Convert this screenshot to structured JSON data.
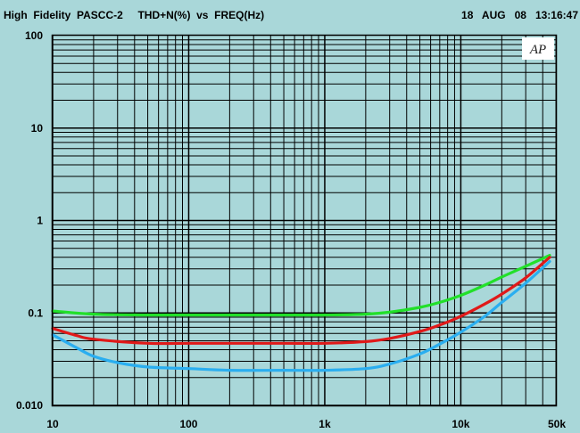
{
  "header": {
    "title": "High  Fidelity  PASCC-2     THD+N(%)  vs  FREQ(Hz)",
    "timestamp": "18   AUG   08   13:16:47"
  },
  "logo": {
    "text": "AP"
  },
  "colors": {
    "background": "#a9d7d9",
    "grid": "#000000",
    "series": [
      "#22e02a",
      "#e01919",
      "#2aaef0"
    ]
  },
  "chart_data": {
    "type": "line",
    "title": "THD+N(%) vs FREQ(Hz)",
    "xlabel": "",
    "ylabel": "",
    "x_scale": "log",
    "y_scale": "log",
    "xlim": [
      10,
      50000
    ],
    "ylim": [
      0.01,
      100
    ],
    "x_ticks": [
      {
        "value": 10,
        "label": "10"
      },
      {
        "value": 100,
        "label": "100"
      },
      {
        "value": 1000,
        "label": "1k"
      },
      {
        "value": 10000,
        "label": "10k"
      },
      {
        "value": 50000,
        "label": "50k"
      }
    ],
    "y_ticks": [
      {
        "value": 100,
        "label": "100"
      },
      {
        "value": 10,
        "label": "10"
      },
      {
        "value": 1,
        "label": "1"
      },
      {
        "value": 0.1,
        "label": "0.1"
      },
      {
        "value": 0.01,
        "label": "0.010"
      }
    ],
    "grid": true,
    "series": [
      {
        "color": "#22e02a",
        "x": [
          10,
          20,
          50,
          100,
          200,
          500,
          1000,
          2000,
          3000,
          5000,
          7000,
          10000,
          15000,
          20000,
          30000,
          45000
        ],
        "y": [
          0.105,
          0.097,
          0.095,
          0.095,
          0.095,
          0.095,
          0.095,
          0.097,
          0.102,
          0.115,
          0.13,
          0.155,
          0.2,
          0.245,
          0.32,
          0.42
        ]
      },
      {
        "color": "#e01919",
        "x": [
          10,
          15,
          20,
          50,
          100,
          200,
          500,
          1000,
          2000,
          3000,
          5000,
          7000,
          10000,
          15000,
          20000,
          30000,
          45000
        ],
        "y": [
          0.068,
          0.057,
          0.052,
          0.047,
          0.047,
          0.047,
          0.047,
          0.047,
          0.049,
          0.053,
          0.063,
          0.074,
          0.092,
          0.125,
          0.16,
          0.24,
          0.4
        ]
      },
      {
        "color": "#2aaef0",
        "x": [
          10,
          15,
          20,
          30,
          50,
          100,
          200,
          500,
          1000,
          2000,
          3000,
          5000,
          7000,
          10000,
          15000,
          20000,
          30000,
          45000
        ],
        "y": [
          0.058,
          0.042,
          0.034,
          0.029,
          0.026,
          0.025,
          0.024,
          0.024,
          0.024,
          0.025,
          0.028,
          0.036,
          0.046,
          0.062,
          0.092,
          0.13,
          0.21,
          0.36
        ]
      }
    ]
  }
}
